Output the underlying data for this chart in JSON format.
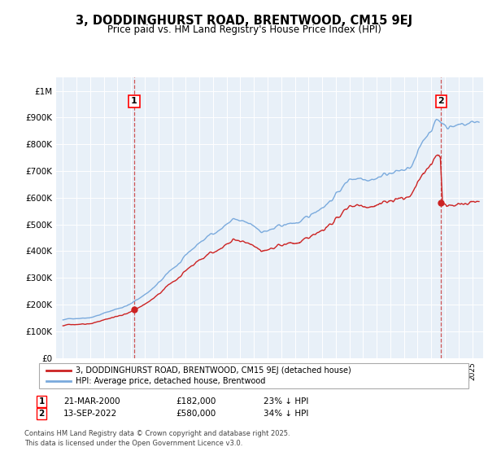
{
  "title": "3, DODDINGHURST ROAD, BRENTWOOD, CM15 9EJ",
  "subtitle": "Price paid vs. HM Land Registry's House Price Index (HPI)",
  "hpi_color": "#7aaadd",
  "price_color": "#cc2222",
  "plot_bg_color": "#e8f0f8",
  "annotation1_date": "21-MAR-2000",
  "annotation1_price": 182000,
  "annotation1_label": "23% ↓ HPI",
  "annotation1_year": 2000.22,
  "annotation2_date": "13-SEP-2022",
  "annotation2_price": 580000,
  "annotation2_label": "34% ↓ HPI",
  "annotation2_year": 2022.71,
  "legend_entry1": "3, DODDINGHURST ROAD, BRENTWOOD, CM15 9EJ (detached house)",
  "legend_entry2": "HPI: Average price, detached house, Brentwood",
  "footer": "Contains HM Land Registry data © Crown copyright and database right 2025.\nThis data is licensed under the Open Government Licence v3.0.",
  "yticks": [
    0,
    100000,
    200000,
    300000,
    400000,
    500000,
    600000,
    700000,
    800000,
    900000,
    1000000
  ],
  "ytick_labels": [
    "£0",
    "£100K",
    "£200K",
    "£300K",
    "£400K",
    "£500K",
    "£600K",
    "£700K",
    "£800K",
    "£900K",
    "£1M"
  ],
  "xmin": 1994.5,
  "xmax": 2025.8,
  "ymin": 0,
  "ymax": 1050000
}
